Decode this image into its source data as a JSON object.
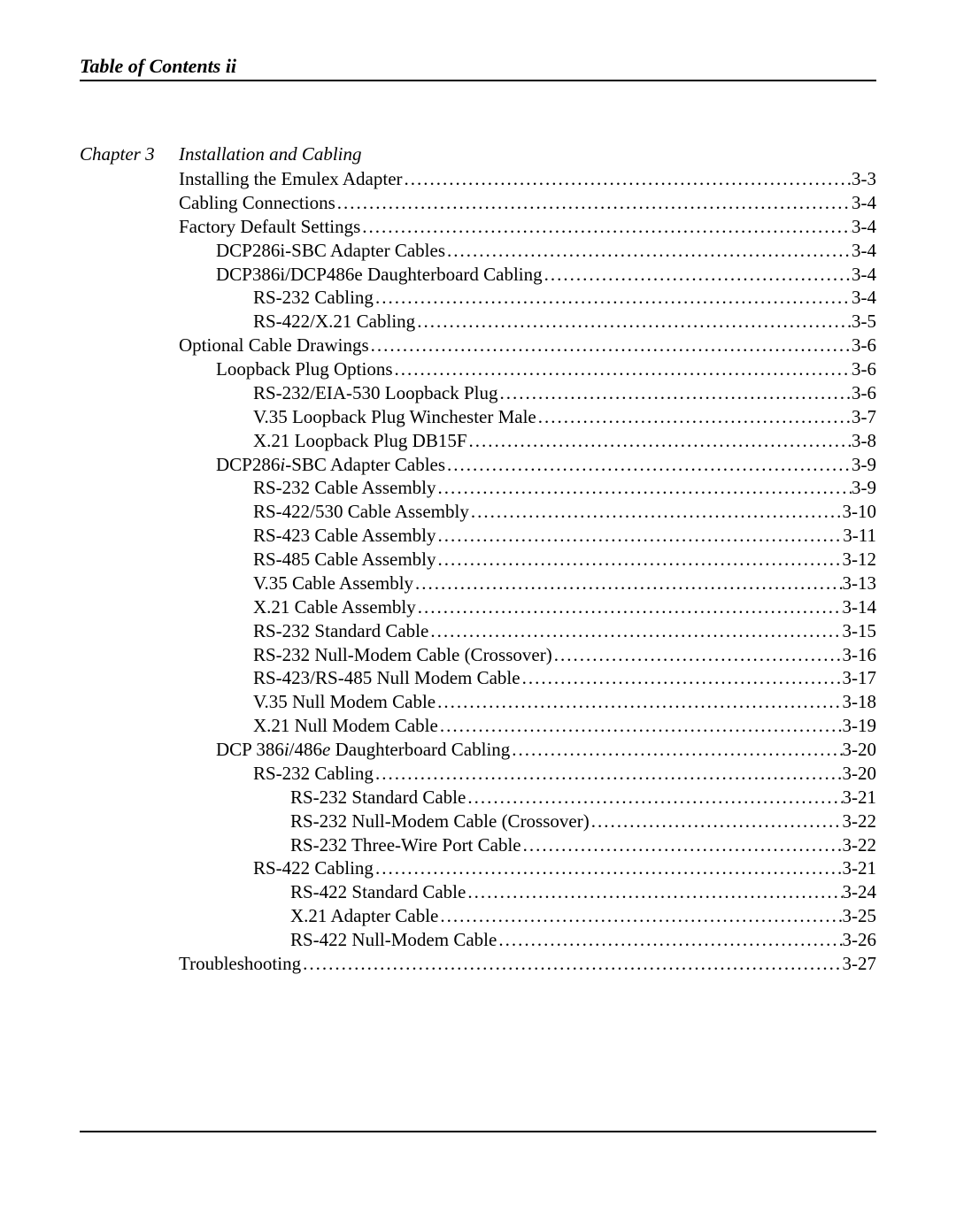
{
  "header": {
    "title": "Table of Contents ii"
  },
  "chapter": {
    "label": "Chapter 3",
    "title": "Installation and Cabling"
  },
  "toc": {
    "dots": "................................................................................................................................................................",
    "items": [
      {
        "text": "Installing the Emulex Adapter ",
        "page": "3-3",
        "indent": 0
      },
      {
        "text": "Cabling Connections",
        "page": "3-4",
        "indent": 0
      },
      {
        "text": "Factory Default Settings",
        "page": "3-4",
        "indent": 0
      },
      {
        "text": "DCP286i-SBC Adapter Cables ",
        "page": "3-4",
        "indent": 1
      },
      {
        "text": "DCP386i/DCP486e Daughterboard Cabling ",
        "page": "3-4",
        "indent": 1
      },
      {
        "text": "RS-232 Cabling ",
        "page": "3-4",
        "indent": 2
      },
      {
        "text": "RS-422/X.21 Cabling ",
        "page": "3-5",
        "indent": 2
      },
      {
        "text": "Optional Cable Drawings",
        "page": "3-6",
        "indent": 0
      },
      {
        "text": "Loopback Plug Options ",
        "page": "3-6",
        "indent": 1
      },
      {
        "text": "RS-232/EIA-530 Loopback Plug ",
        "page": "3-6",
        "indent": 2
      },
      {
        "text": "V.35 Loopback Plug Winchester Male ",
        "page": "3-7",
        "indent": 2
      },
      {
        "text": "X.21 Loopback Plug DB15F",
        "page": "3-8",
        "indent": 2
      },
      {
        "html": "DCP286<span class=\"italic\">i</span>-SBC Adapter Cables ",
        "page": "3-9",
        "indent": 1
      },
      {
        "text": "RS-232 Cable Assembly ",
        "page": "3-9",
        "indent": 2
      },
      {
        "text": "RS-422/530 Cable Assembly ",
        "page": "3-10",
        "indent": 2
      },
      {
        "text": "RS-423 Cable Assembly ",
        "page": "3-11",
        "indent": 2
      },
      {
        "text": "RS-485 Cable Assembly ",
        "page": "3-12",
        "indent": 2
      },
      {
        "text": "V.35 Cable Assembly",
        "page": "3-13",
        "indent": 2
      },
      {
        "text": "X.21 Cable Assembly",
        "page": "3-14",
        "indent": 2
      },
      {
        "text": "RS-232 Standard Cable ",
        "page": "3-15",
        "indent": 2
      },
      {
        "text": "RS-232 Null-Modem Cable (Crossover)",
        "page": "3-16",
        "indent": 2
      },
      {
        "text": "RS-423/RS-485 Null Modem Cable",
        "page": "3-17",
        "indent": 2
      },
      {
        "text": "V.35 Null Modem Cable ",
        "page": "3-18",
        "indent": 2
      },
      {
        "text": "X.21 Null Modem Cable ",
        "page": "3-19",
        "indent": 2
      },
      {
        "html": "DCP 386<span class=\"italic\">i</span>/486<span class=\"italic\">e</span> Daughterboard Cabling ",
        "page": "3-20",
        "indent": 1
      },
      {
        "text": "RS-232 Cabling ",
        "page": "3-20",
        "indent": 2
      },
      {
        "text": "RS-232 Standard Cable ",
        "page": "3-21",
        "indent": 3
      },
      {
        "text": "RS-232 Null-Modem Cable (Crossover)",
        "page": "3-22",
        "indent": 3
      },
      {
        "text": "RS-232 Three-Wire Port Cable ",
        "page": "3-22",
        "indent": 3
      },
      {
        "text": "RS-422 Cabling ",
        "page": "3-21",
        "indent": 2
      },
      {
        "text": "RS-422 Standard Cable ",
        "page": "3-24",
        "indent": 3
      },
      {
        "text": "X.21 Adapter Cable ",
        "page": "3-25",
        "indent": 3
      },
      {
        "text": "RS-422 Null-Modem Cable",
        "page": "3-26",
        "indent": 3
      },
      {
        "text": "Troubleshooting ",
        "page": "3-27",
        "indent": 0
      }
    ]
  }
}
